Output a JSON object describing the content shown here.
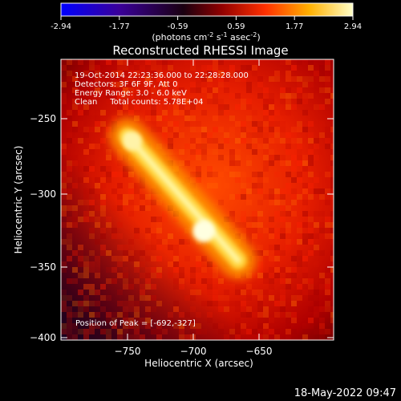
{
  "chart_data": {
    "type": "heatmap",
    "title": "Reconstructed RHESSI Image",
    "xlabel": "Heliocentric X (arcsec)",
    "ylabel": "Heliocentric Y (arcsec)",
    "xlim": [
      -797,
      -700
    ],
    "ylim": [
      -402,
      -221
    ],
    "x_ticks": [
      -750,
      -700,
      -650
    ],
    "y_ticks": [
      -400,
      -350,
      -300,
      -250
    ],
    "colorbar": {
      "ticks": [
        "-2.94",
        "-1.77",
        "-0.59",
        "0.59",
        "1.77",
        "2.94"
      ],
      "label_parts": [
        "(photons cm",
        "-2",
        " s",
        "-1",
        " asec",
        "-2",
        ")"
      ],
      "range": [
        -2.94,
        2.94
      ],
      "colormap": [
        "#0000ff",
        "#4b0082",
        "#000000",
        "#8b0000",
        "#ff4500",
        "#ffd700",
        "#ffffff"
      ]
    },
    "annotations": [
      "19-Oct-2014 22:23:36.000 to 22:28:28.000",
      "Detectors: 3F 6F 9F, Att 0",
      "Energy Range: 3.0 - 6.0 keV",
      "Clean     Total counts: 5.78E+04"
    ],
    "peak_label": "Position of Peak = [-692,-327]",
    "peak": [
      -692,
      -327
    ],
    "source_axis": {
      "from": [
        -750,
        -262
      ],
      "to": [
        -666,
        -347
      ]
    }
  },
  "footer_timestamp": "18-May-2022 09:47"
}
